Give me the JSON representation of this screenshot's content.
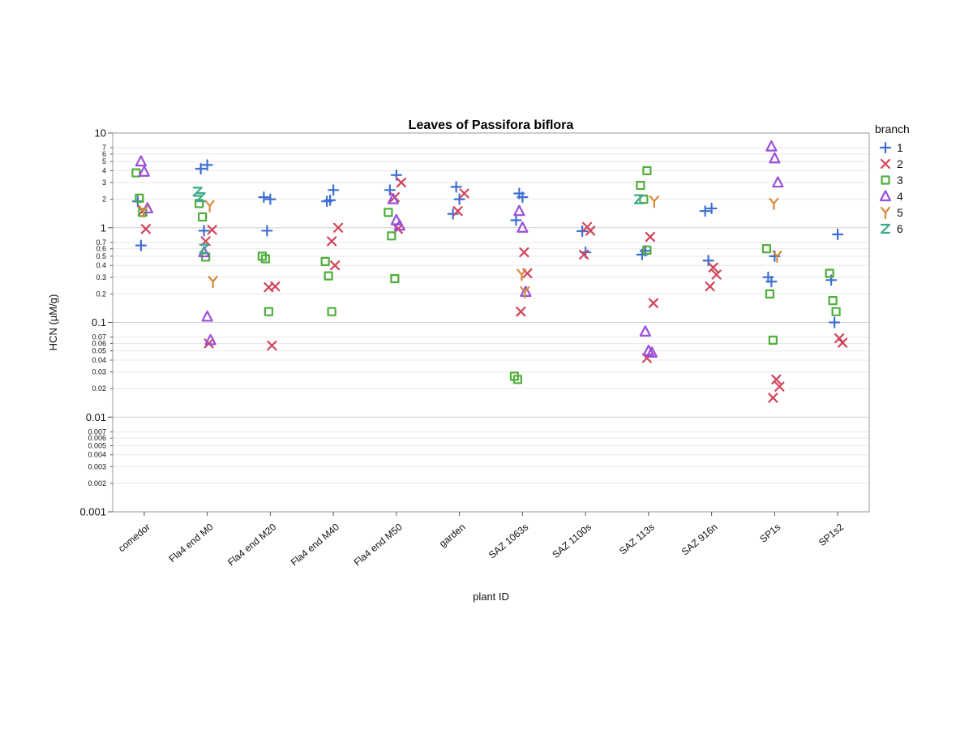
{
  "chart_data": {
    "type": "scatter",
    "title": "Leaves of Passifora biflora",
    "xlabel": "plant ID",
    "ylabel": "HCN (µM/g)",
    "y_scale": "log",
    "ylim": [
      0.001,
      10
    ],
    "y_ticks": [
      {
        "value": 10,
        "label": "10",
        "major": true
      },
      {
        "value": 7,
        "label": "7",
        "major": false
      },
      {
        "value": 6,
        "label": "6",
        "major": false
      },
      {
        "value": 5,
        "label": "5",
        "major": false
      },
      {
        "value": 4,
        "label": "4",
        "major": false
      },
      {
        "value": 3,
        "label": "3",
        "major": false
      },
      {
        "value": 2,
        "label": "2",
        "major": false
      },
      {
        "value": 1,
        "label": "1",
        "major": true
      },
      {
        "value": 0.7,
        "label": "0.7",
        "major": false
      },
      {
        "value": 0.6,
        "label": "0.6",
        "major": false
      },
      {
        "value": 0.5,
        "label": "0.5",
        "major": false
      },
      {
        "value": 0.4,
        "label": "0.4",
        "major": false
      },
      {
        "value": 0.3,
        "label": "0.3",
        "major": false
      },
      {
        "value": 0.2,
        "label": "0.2",
        "major": false
      },
      {
        "value": 0.1,
        "label": "0.1",
        "major": true
      },
      {
        "value": 0.07,
        "label": "0.07",
        "major": false
      },
      {
        "value": 0.06,
        "label": "0.06",
        "major": false
      },
      {
        "value": 0.05,
        "label": "0.05",
        "major": false
      },
      {
        "value": 0.04,
        "label": "0.04",
        "major": false
      },
      {
        "value": 0.03,
        "label": "0.03",
        "major": false
      },
      {
        "value": 0.02,
        "label": "0.02",
        "major": false
      },
      {
        "value": 0.01,
        "label": "0.01",
        "major": true
      },
      {
        "value": 0.007,
        "label": "0.007",
        "major": false
      },
      {
        "value": 0.006,
        "label": "0.006",
        "major": false
      },
      {
        "value": 0.005,
        "label": "0.005",
        "major": false
      },
      {
        "value": 0.004,
        "label": "0.004",
        "major": false
      },
      {
        "value": 0.003,
        "label": "0.003",
        "major": false
      },
      {
        "value": 0.002,
        "label": "0.002",
        "major": false
      },
      {
        "value": 0.001,
        "label": "0.001",
        "major": true
      }
    ],
    "categories": [
      "comedor",
      "Fla4 end M0",
      "Fla4 end M20",
      "Fla4 end M40",
      "Fla4 end M50",
      "garden",
      "SAZ 1063s",
      "SAZ 1100s",
      "SAZ 113s",
      "SAZ 916n",
      "SP1s",
      "SP1s2"
    ],
    "grid": true,
    "legend": {
      "title": "branch",
      "position": "right"
    },
    "series": [
      {
        "name": "1",
        "marker": "plus",
        "color": "#3f6fd1",
        "points": [
          {
            "x": "comedor",
            "y": 1.9
          },
          {
            "x": "comedor",
            "y": 0.65
          },
          {
            "x": "Fla4 end M0",
            "y": 4.6
          },
          {
            "x": "Fla4 end M0",
            "y": 4.2
          },
          {
            "x": "Fla4 end M0",
            "y": 0.93
          },
          {
            "x": "Fla4 end M20",
            "y": 2.0
          },
          {
            "x": "Fla4 end M20",
            "y": 2.1
          },
          {
            "x": "Fla4 end M20",
            "y": 0.93
          },
          {
            "x": "Fla4 end M40",
            "y": 2.5
          },
          {
            "x": "Fla4 end M40",
            "y": 1.9
          },
          {
            "x": "Fla4 end M40",
            "y": 1.95
          },
          {
            "x": "Fla4 end M50",
            "y": 3.6
          },
          {
            "x": "Fla4 end M50",
            "y": 2.5
          },
          {
            "x": "garden",
            "y": 2.7
          },
          {
            "x": "garden",
            "y": 2.0
          },
          {
            "x": "garden",
            "y": 1.4
          },
          {
            "x": "SAZ 1063s",
            "y": 2.3
          },
          {
            "x": "SAZ 1063s",
            "y": 2.1
          },
          {
            "x": "SAZ 1063s",
            "y": 1.2
          },
          {
            "x": "SAZ 1100s",
            "y": 0.92
          },
          {
            "x": "SAZ 1100s",
            "y": 0.55
          },
          {
            "x": "SAZ 113s",
            "y": 0.52
          },
          {
            "x": "SAZ 113s",
            "y": 0.57
          },
          {
            "x": "SAZ 916n",
            "y": 1.6
          },
          {
            "x": "SAZ 916n",
            "y": 1.5
          },
          {
            "x": "SAZ 916n",
            "y": 0.45
          },
          {
            "x": "SP1s",
            "y": 0.5
          },
          {
            "x": "SP1s",
            "y": 0.3
          },
          {
            "x": "SP1s",
            "y": 0.27
          },
          {
            "x": "SP1s2",
            "y": 0.85
          },
          {
            "x": "SP1s2",
            "y": 0.28
          },
          {
            "x": "SP1s2",
            "y": 0.1
          }
        ]
      },
      {
        "name": "2",
        "marker": "x",
        "color": "#d1455a",
        "points": [
          {
            "x": "comedor",
            "y": 1.5
          },
          {
            "x": "comedor",
            "y": 0.97
          },
          {
            "x": "Fla4 end M0",
            "y": 0.95
          },
          {
            "x": "Fla4 end M0",
            "y": 0.72
          },
          {
            "x": "Fla4 end M0",
            "y": 0.06
          },
          {
            "x": "Fla4 end M20",
            "y": 0.24
          },
          {
            "x": "Fla4 end M20",
            "y": 0.235
          },
          {
            "x": "Fla4 end M20",
            "y": 0.057
          },
          {
            "x": "Fla4 end M40",
            "y": 1.0
          },
          {
            "x": "Fla4 end M40",
            "y": 0.72
          },
          {
            "x": "Fla4 end M40",
            "y": 0.4
          },
          {
            "x": "Fla4 end M50",
            "y": 3.0
          },
          {
            "x": "Fla4 end M50",
            "y": 2.1
          },
          {
            "x": "Fla4 end M50",
            "y": 0.97
          },
          {
            "x": "garden",
            "y": 2.3
          },
          {
            "x": "garden",
            "y": 1.5
          },
          {
            "x": "SAZ 1063s",
            "y": 0.55
          },
          {
            "x": "SAZ 1063s",
            "y": 0.33
          },
          {
            "x": "SAZ 1063s",
            "y": 0.13
          },
          {
            "x": "SAZ 1100s",
            "y": 1.02
          },
          {
            "x": "SAZ 1100s",
            "y": 0.93
          },
          {
            "x": "SAZ 1100s",
            "y": 0.52
          },
          {
            "x": "SAZ 113s",
            "y": 0.8
          },
          {
            "x": "SAZ 113s",
            "y": 0.16
          },
          {
            "x": "SAZ 113s",
            "y": 0.042
          },
          {
            "x": "SAZ 916n",
            "y": 0.38
          },
          {
            "x": "SAZ 916n",
            "y": 0.32
          },
          {
            "x": "SAZ 916n",
            "y": 0.24
          },
          {
            "x": "SP1s",
            "y": 0.025
          },
          {
            "x": "SP1s",
            "y": 0.021
          },
          {
            "x": "SP1s",
            "y": 0.016
          },
          {
            "x": "SP1s2",
            "y": 0.068
          },
          {
            "x": "SP1s2",
            "y": 0.061
          }
        ]
      },
      {
        "name": "3",
        "marker": "square",
        "color": "#4fae3c",
        "points": [
          {
            "x": "comedor",
            "y": 3.8
          },
          {
            "x": "comedor",
            "y": 2.05
          },
          {
            "x": "comedor",
            "y": 1.45
          },
          {
            "x": "Fla4 end M0",
            "y": 1.8
          },
          {
            "x": "Fla4 end M0",
            "y": 1.3
          },
          {
            "x": "Fla4 end M0",
            "y": 0.49
          },
          {
            "x": "Fla4 end M20",
            "y": 0.5
          },
          {
            "x": "Fla4 end M20",
            "y": 0.47
          },
          {
            "x": "Fla4 end M20",
            "y": 0.13
          },
          {
            "x": "Fla4 end M40",
            "y": 0.44
          },
          {
            "x": "Fla4 end M40",
            "y": 0.31
          },
          {
            "x": "Fla4 end M40",
            "y": 0.13
          },
          {
            "x": "Fla4 end M50",
            "y": 1.45
          },
          {
            "x": "Fla4 end M50",
            "y": 0.82
          },
          {
            "x": "Fla4 end M50",
            "y": 0.29
          },
          {
            "x": "SAZ 1063s",
            "y": 0.027
          },
          {
            "x": "SAZ 1063s",
            "y": 0.025
          },
          {
            "x": "SAZ 113s",
            "y": 4.0
          },
          {
            "x": "SAZ 113s",
            "y": 2.8
          },
          {
            "x": "SAZ 113s",
            "y": 2.0
          },
          {
            "x": "SAZ 113s",
            "y": 0.58
          },
          {
            "x": "SP1s",
            "y": 0.6
          },
          {
            "x": "SP1s",
            "y": 0.2
          },
          {
            "x": "SP1s",
            "y": 0.065
          },
          {
            "x": "SP1s2",
            "y": 0.33
          },
          {
            "x": "SP1s2",
            "y": 0.17
          },
          {
            "x": "SP1s2",
            "y": 0.13
          }
        ]
      },
      {
        "name": "4",
        "marker": "triangle",
        "color": "#9a4fd9",
        "points": [
          {
            "x": "comedor",
            "y": 5.0
          },
          {
            "x": "comedor",
            "y": 3.9
          },
          {
            "x": "comedor",
            "y": 1.6
          },
          {
            "x": "Fla4 end M0",
            "y": 0.55
          },
          {
            "x": "Fla4 end M0",
            "y": 0.115
          },
          {
            "x": "Fla4 end M0",
            "y": 0.065
          },
          {
            "x": "Fla4 end M50",
            "y": 2.0
          },
          {
            "x": "Fla4 end M50",
            "y": 1.2
          },
          {
            "x": "Fla4 end M50",
            "y": 1.05
          },
          {
            "x": "SAZ 1063s",
            "y": 1.5
          },
          {
            "x": "SAZ 1063s",
            "y": 1.0
          },
          {
            "x": "SAZ 1063s",
            "y": 0.21
          },
          {
            "x": "SAZ 113s",
            "y": 0.08
          },
          {
            "x": "SAZ 113s",
            "y": 0.05
          },
          {
            "x": "SAZ 113s",
            "y": 0.048
          },
          {
            "x": "SP1s",
            "y": 7.2
          },
          {
            "x": "SP1s",
            "y": 5.4
          },
          {
            "x": "SP1s",
            "y": 3.0
          }
        ]
      },
      {
        "name": "5",
        "marker": "y",
        "color": "#d88a3a",
        "points": [
          {
            "x": "comedor",
            "y": 1.5
          },
          {
            "x": "Fla4 end M0",
            "y": 1.7
          },
          {
            "x": "Fla4 end M0",
            "y": 0.27
          },
          {
            "x": "SAZ 1063s",
            "y": 0.32
          },
          {
            "x": "SAZ 1063s",
            "y": 0.21
          },
          {
            "x": "SAZ 113s",
            "y": 1.9
          },
          {
            "x": "SP1s",
            "y": 1.8
          },
          {
            "x": "SP1s",
            "y": 0.5
          }
        ]
      },
      {
        "name": "6",
        "marker": "z",
        "color": "#3aaa8a",
        "points": [
          {
            "x": "Fla4 end M0",
            "y": 2.4
          },
          {
            "x": "Fla4 end M0",
            "y": 2.1
          },
          {
            "x": "Fla4 end M0",
            "y": 0.6
          },
          {
            "x": "SAZ 113s",
            "y": 2.0
          }
        ]
      }
    ]
  }
}
